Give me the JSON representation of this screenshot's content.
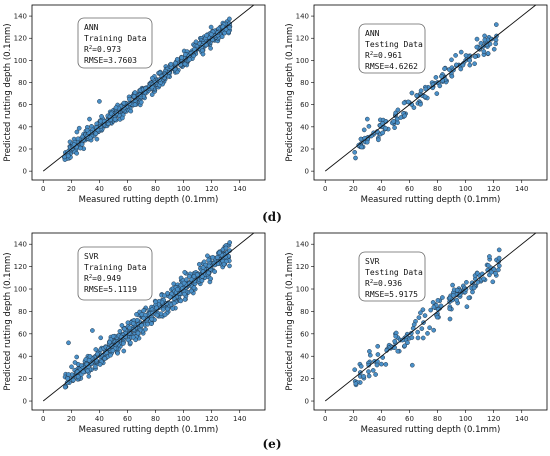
{
  "colors": {
    "point_fill": "#4a90c8",
    "point_edge": "#1f2f3f",
    "line": "#111111",
    "frame": "#000000"
  },
  "captions": [
    "(d)",
    "(e)"
  ],
  "chart_data": [
    {
      "type": "scatter",
      "title": "",
      "xlabel": "Measured rutting depth (0.1mm)",
      "ylabel": "Predicted rutting depth (0.1mm)",
      "xlim": [
        -8,
        158
      ],
      "ylim": [
        -8,
        150
      ],
      "xticks": [
        0,
        20,
        40,
        60,
        80,
        100,
        120,
        140
      ],
      "yticks": [
        0,
        20,
        40,
        60,
        80,
        100,
        120,
        140
      ],
      "reference_line": [
        [
          0,
          0
        ],
        [
          150,
          150
        ]
      ],
      "annotation": {
        "model": "ANN",
        "dataset": "Training Data",
        "r2_prefix": "R",
        "r2_sup": "2",
        "r2_value": "=0.973",
        "rmse": "RMSE=3.7603"
      },
      "points": {
        "count": 620,
        "x_range": [
          15,
          133
        ],
        "noise": 3.7,
        "seed": 11,
        "sample": [
          [
            16,
            15
          ],
          [
            20,
            22
          ],
          [
            30,
            28
          ],
          [
            33,
            47
          ],
          [
            40,
            63
          ],
          [
            50,
            55
          ],
          [
            60,
            58
          ],
          [
            70,
            70
          ],
          [
            80,
            82
          ],
          [
            90,
            90
          ],
          [
            100,
            102
          ],
          [
            110,
            112
          ],
          [
            120,
            118
          ],
          [
            130,
            132
          ]
        ]
      }
    },
    {
      "type": "scatter",
      "title": "",
      "xlabel": "Measured rutting depth (0.1mm)",
      "ylabel": "Predicted rutting depth (0.1mm)",
      "xlim": [
        -8,
        158
      ],
      "ylim": [
        -8,
        150
      ],
      "xticks": [
        0,
        20,
        40,
        60,
        80,
        100,
        120,
        140
      ],
      "yticks": [
        0,
        20,
        40,
        60,
        80,
        100,
        120,
        140
      ],
      "reference_line": [
        [
          0,
          0
        ],
        [
          150,
          150
        ]
      ],
      "annotation": {
        "model": "ANN",
        "dataset": "Testing Data",
        "r2_prefix": "R",
        "r2_sup": "2",
        "r2_value": "=0.961",
        "rmse": "RMSE=4.6262"
      },
      "points": {
        "count": 160,
        "x_range": [
          20,
          122
        ],
        "noise": 4.6,
        "seed": 23,
        "sample": [
          [
            21,
            17
          ],
          [
            25,
            22
          ],
          [
            30,
            47
          ],
          [
            40,
            40
          ],
          [
            50,
            50
          ],
          [
            60,
            62
          ],
          [
            70,
            68
          ],
          [
            80,
            80
          ],
          [
            90,
            86
          ],
          [
            100,
            100
          ],
          [
            110,
            110
          ],
          [
            122,
            122
          ]
        ]
      }
    },
    {
      "type": "scatter",
      "title": "",
      "xlabel": "Measured rutting depth (0.1mm)",
      "ylabel": "Predicted rutting depth (0.1mm)",
      "xlim": [
        -8,
        158
      ],
      "ylim": [
        -8,
        150
      ],
      "xticks": [
        0,
        20,
        40,
        60,
        80,
        100,
        120,
        140
      ],
      "yticks": [
        0,
        20,
        40,
        60,
        80,
        100,
        120,
        140
      ],
      "reference_line": [
        [
          0,
          0
        ],
        [
          150,
          150
        ]
      ],
      "annotation": {
        "model": "SVR",
        "dataset": "Training Data",
        "r2_prefix": "R",
        "r2_sup": "2",
        "r2_value": "=0.949",
        "rmse": "RMSE=5.1119"
      },
      "points": {
        "count": 620,
        "x_range": [
          15,
          133
        ],
        "noise": 5.1,
        "seed": 37,
        "sample": [
          [
            16,
            24
          ],
          [
            18,
            52
          ],
          [
            30,
            36
          ],
          [
            35,
            63
          ],
          [
            45,
            40
          ],
          [
            60,
            58
          ],
          [
            70,
            75
          ],
          [
            80,
            80
          ],
          [
            90,
            95
          ],
          [
            100,
            100
          ],
          [
            115,
            112
          ],
          [
            130,
            130
          ]
        ]
      }
    },
    {
      "type": "scatter",
      "title": "",
      "xlabel": "Measured rutting depth (0.1mm)",
      "ylabel": "Predicted rutting depth (0.1mm)",
      "xlim": [
        -8,
        158
      ],
      "ylim": [
        -8,
        150
      ],
      "xticks": [
        0,
        20,
        40,
        60,
        80,
        100,
        120,
        140
      ],
      "yticks": [
        0,
        20,
        40,
        60,
        80,
        100,
        120,
        140
      ],
      "reference_line": [
        [
          0,
          0
        ],
        [
          150,
          150
        ]
      ],
      "annotation": {
        "model": "SVR",
        "dataset": "Testing Data",
        "r2_prefix": "R",
        "r2_sup": "2",
        "r2_value": "=0.936",
        "rmse": "RMSE=5.9175"
      },
      "points": {
        "count": 170,
        "x_range": [
          20,
          124
        ],
        "noise": 5.9,
        "seed": 53,
        "sample": [
          [
            21,
            28
          ],
          [
            25,
            22
          ],
          [
            40,
            33
          ],
          [
            50,
            60
          ],
          [
            60,
            56
          ],
          [
            62,
            32
          ],
          [
            70,
            70
          ],
          [
            80,
            78
          ],
          [
            90,
            90
          ],
          [
            100,
            100
          ],
          [
            110,
            112
          ],
          [
            122,
            126
          ]
        ]
      }
    }
  ]
}
